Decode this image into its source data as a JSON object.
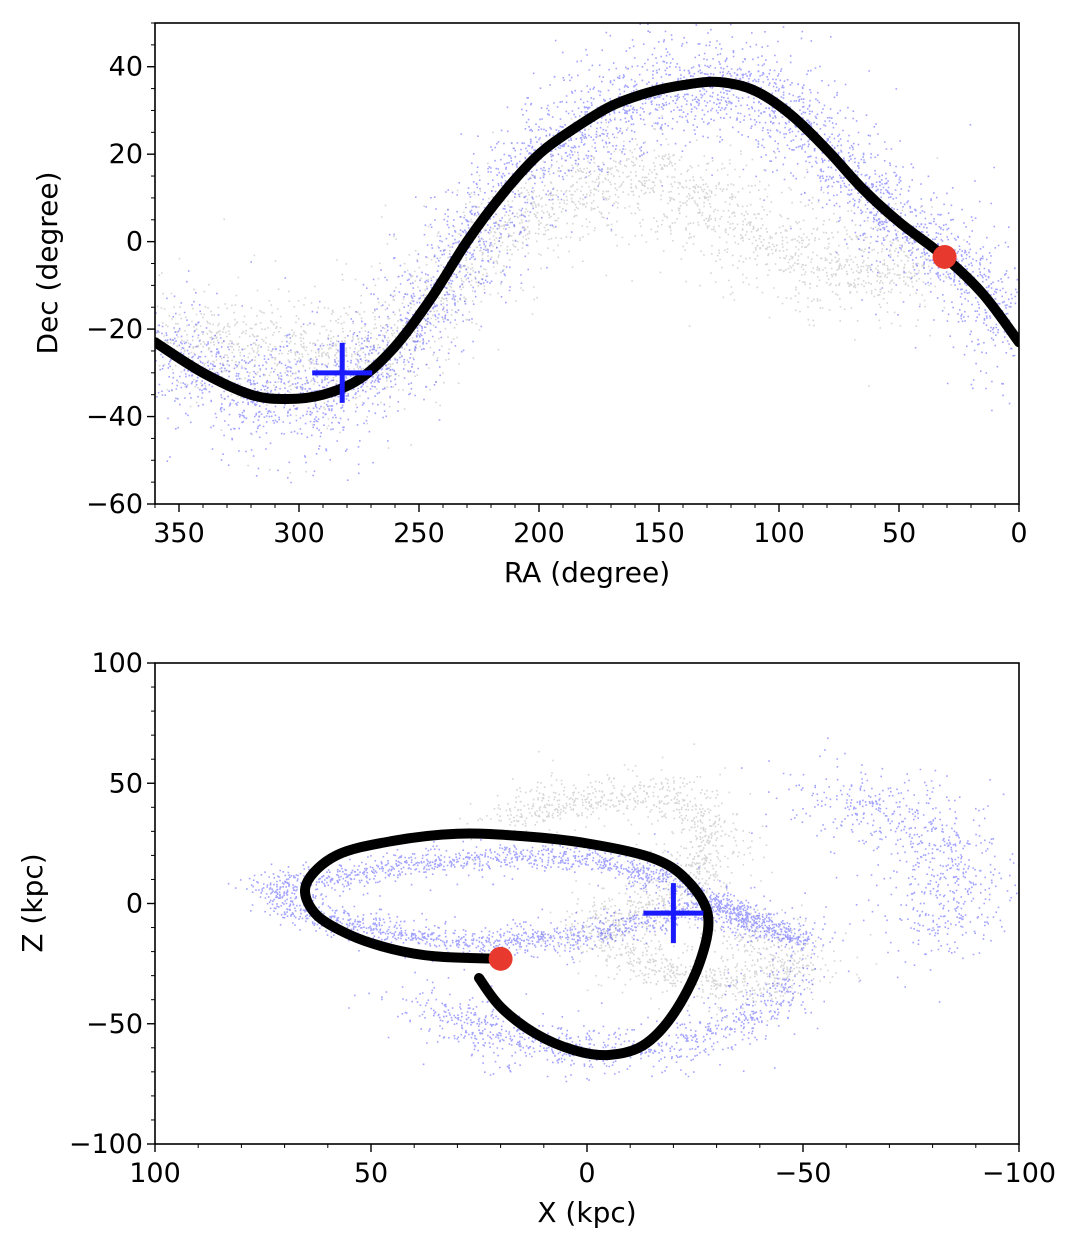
{
  "chart_data": [
    {
      "type": "scatter",
      "xlabel": "RA (degree)",
      "ylabel": "Dec (degree)",
      "xlim": [
        360,
        0
      ],
      "ylim": [
        -60,
        50
      ],
      "x_ticks": [
        350,
        300,
        250,
        200,
        150,
        100,
        50,
        0
      ],
      "y_ticks": [
        40,
        20,
        0,
        -20,
        -40,
        -60
      ],
      "x_tick_labels": [
        "350",
        "300",
        "250",
        "200",
        "150",
        "100",
        "50",
        "0"
      ],
      "y_tick_labels": [
        "40",
        "20",
        "0",
        "−20",
        "−40",
        "−60"
      ],
      "grid": false,
      "colors": {
        "particles_gray": "#8a8a8a",
        "particles_blue": "#1a1aff",
        "orbit": "#000000",
        "marker_dot": "#e8392e",
        "marker_cross": "#1a1aff"
      },
      "orbit": [
        [
          360,
          -23
        ],
        [
          340,
          -30
        ],
        [
          320,
          -35
        ],
        [
          305,
          -36
        ],
        [
          290,
          -35
        ],
        [
          275,
          -31.5
        ],
        [
          260,
          -24
        ],
        [
          245,
          -13
        ],
        [
          230,
          0
        ],
        [
          215,
          11
        ],
        [
          200,
          20
        ],
        [
          185,
          26
        ],
        [
          170,
          31
        ],
        [
          155,
          34
        ],
        [
          140,
          35.8
        ],
        [
          125,
          36.5
        ],
        [
          110,
          34.5
        ],
        [
          95,
          29
        ],
        [
          80,
          21
        ],
        [
          65,
          12
        ],
        [
          50,
          4.5
        ],
        [
          31,
          -3.5
        ],
        [
          15,
          -12
        ],
        [
          0,
          -23
        ]
      ],
      "particle_bands": [
        {
          "component": "blue",
          "count": 4200,
          "spread": 6,
          "x_start": 360,
          "x_end": 0
        },
        {
          "component": "gray",
          "count": 2600,
          "x_start": 360,
          "x_end": 40,
          "ridge": [
            [
              360,
              -22
            ],
            [
              330,
              -24
            ],
            [
              300,
              -25
            ],
            [
              270,
              -27
            ],
            [
              250,
              -18
            ],
            [
              230,
              -5
            ],
            [
              210,
              3
            ],
            [
              190,
              10
            ],
            [
              170,
              15
            ],
            [
              150,
              14
            ],
            [
              130,
              9
            ],
            [
              110,
              1
            ],
            [
              90,
              -4
            ],
            [
              70,
              -6
            ],
            [
              50,
              -6
            ],
            [
              40,
              -5
            ]
          ]
        }
      ],
      "marker_dot": {
        "x": 31,
        "y": -3.5
      },
      "marker_cross": {
        "x": 282,
        "y": -30
      }
    },
    {
      "type": "scatter",
      "xlabel": "X (kpc)",
      "ylabel": "Z (kpc)",
      "xlim": [
        100,
        -100
      ],
      "ylim": [
        -100,
        100
      ],
      "x_ticks": [
        100,
        50,
        0,
        -50,
        -100
      ],
      "y_ticks": [
        100,
        50,
        0,
        -50,
        -100
      ],
      "x_tick_labels": [
        "100",
        "50",
        "0",
        "−50",
        "−100"
      ],
      "y_tick_labels": [
        "100",
        "50",
        "0",
        "−50",
        "−100"
      ],
      "grid": false,
      "colors": {
        "particles_gray": "#8a8a8a",
        "particles_blue": "#1a1aff",
        "orbit": "#000000",
        "marker_dot": "#e8392e",
        "marker_cross": "#1a1aff"
      },
      "orbit": [
        [
          25,
          -31
        ],
        [
          20,
          -43
        ],
        [
          12,
          -54
        ],
        [
          3,
          -61
        ],
        [
          -5,
          -63
        ],
        [
          -13,
          -59
        ],
        [
          -20,
          -46
        ],
        [
          -26,
          -25
        ],
        [
          -28,
          -5
        ],
        [
          -23,
          10
        ],
        [
          -15,
          19
        ],
        [
          0,
          25
        ],
        [
          15,
          28
        ],
        [
          30,
          29
        ],
        [
          45,
          26
        ],
        [
          58,
          20
        ],
        [
          65,
          8
        ],
        [
          63,
          -4
        ],
        [
          55,
          -13
        ],
        [
          45,
          -19
        ],
        [
          35,
          -22
        ],
        [
          20,
          -23
        ]
      ],
      "particle_bands": [
        {
          "component": "blue",
          "count": 2600,
          "spread": 3,
          "ridge": [
            [
              75,
              8
            ],
            [
              70,
              0
            ],
            [
              60,
              -6
            ],
            [
              45,
              -12
            ],
            [
              30,
              -16
            ],
            [
              15,
              -15
            ],
            [
              0,
              -13
            ],
            [
              -15,
              -7
            ],
            [
              -30,
              0
            ],
            [
              -45,
              -12
            ],
            [
              -50,
              -15
            ],
            [
              -40,
              -10
            ],
            [
              -20,
              10
            ],
            [
              0,
              18
            ],
            [
              20,
              20
            ],
            [
              45,
              16
            ],
            [
              62,
              10
            ],
            [
              75,
              8
            ]
          ]
        },
        {
          "component": "blue",
          "count": 900,
          "spread": 5,
          "ridge": [
            [
              40,
              -40
            ],
            [
              20,
              -55
            ],
            [
              0,
              -62
            ],
            [
              -20,
              -60
            ],
            [
              -40,
              -45
            ],
            [
              -48,
              -30
            ]
          ]
        },
        {
          "component": "blue",
          "count": 700,
          "spread": 8,
          "ridge": [
            [
              -55,
              45
            ],
            [
              -70,
              40
            ],
            [
              -82,
              25
            ],
            [
              -85,
              5
            ],
            [
              -80,
              -15
            ]
          ]
        },
        {
          "component": "gray",
          "count": 1800,
          "spread": 5,
          "ridge": [
            [
              20,
              35
            ],
            [
              0,
              45
            ],
            [
              -20,
              45
            ],
            [
              -30,
              30
            ],
            [
              -25,
              10
            ],
            [
              -15,
              0
            ],
            [
              0,
              -10
            ],
            [
              -20,
              -30
            ],
            [
              -40,
              -35
            ],
            [
              -50,
              -25
            ],
            [
              -35,
              -12
            ]
          ]
        }
      ],
      "marker_dot": {
        "x": 20,
        "y": -23
      },
      "marker_cross": {
        "x": -20,
        "y": -4
      }
    }
  ]
}
